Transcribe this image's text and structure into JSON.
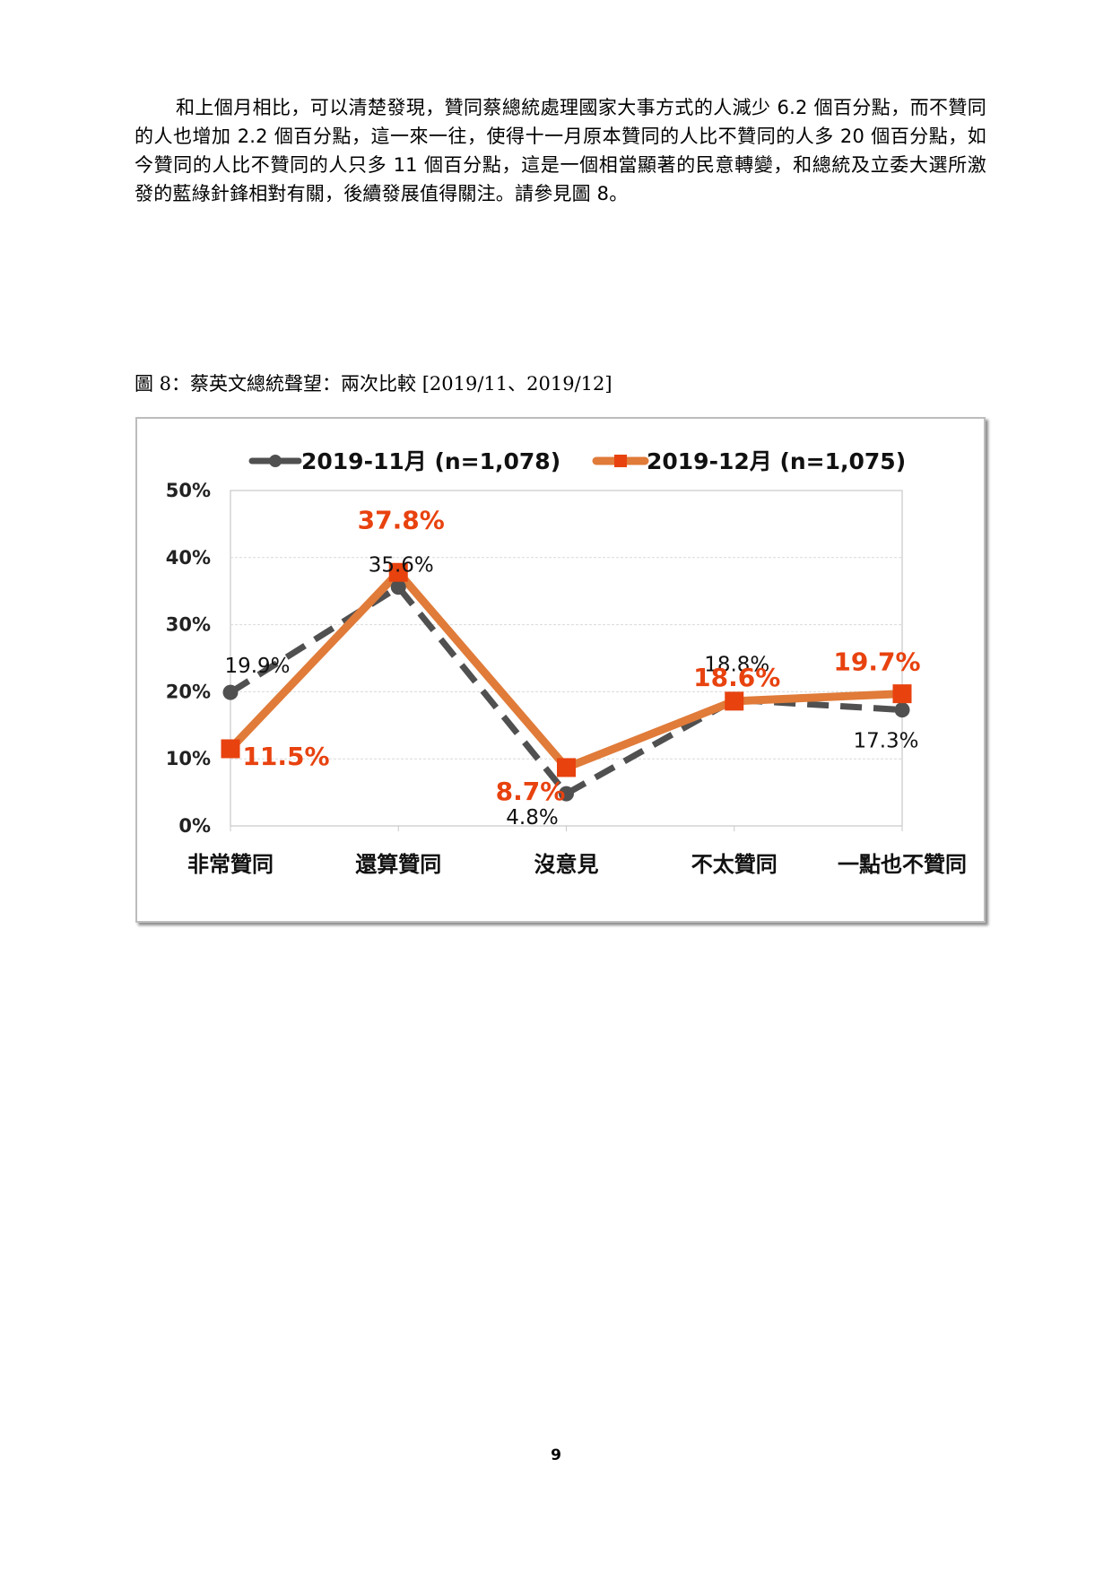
{
  "document": {
    "paragraph": "和上個月相比，可以清楚發現，贊同蔡總統處理國家大事方式的人減少 6.2 個百分點，而不贊同的人也增加 2.2 個百分點，這一來一往，使得十一月原本贊同的人比不贊同的人多 20 個百分點，如今贊同的人比不贊同的人只多 11 個百分點，這是一個相當顯著的民意轉變，和總統及立委大選所激發的藍綠針鋒相對有關，後續發展值得關注。請參見圖 8。",
    "figure_caption": "圖 8：蔡英文總統聲望：兩次比較  [2019/11、2019/12]",
    "page_number": "9"
  },
  "chart_data": {
    "type": "line",
    "categories": [
      "非常贊同",
      "還算贊同",
      "沒意見",
      "不太贊同",
      "一點也不贊同"
    ],
    "ylim": [
      0,
      50
    ],
    "yticks": [
      "0%",
      "10%",
      "20%",
      "30%",
      "40%",
      "50%"
    ],
    "grid": true,
    "legend_position": "top",
    "series": [
      {
        "name": "2019-11月 (n=1,078)",
        "values": [
          19.9,
          35.6,
          4.8,
          18.8,
          17.3
        ],
        "labels": [
          "19.9%",
          "35.6%",
          "4.8%",
          "18.8%",
          "17.3%"
        ],
        "color": "#505050",
        "style": "dashed",
        "marker": "circle"
      },
      {
        "name": "2019-12月 (n=1,075)",
        "values": [
          11.5,
          37.8,
          8.7,
          18.6,
          19.7
        ],
        "labels": [
          "11.5%",
          "37.8%",
          "8.7%",
          "18.6%",
          "19.7%"
        ],
        "color": "#E07B39",
        "marker_color": "#E8420F",
        "label_color": "#E8420F",
        "style": "solid",
        "marker": "square"
      }
    ]
  }
}
